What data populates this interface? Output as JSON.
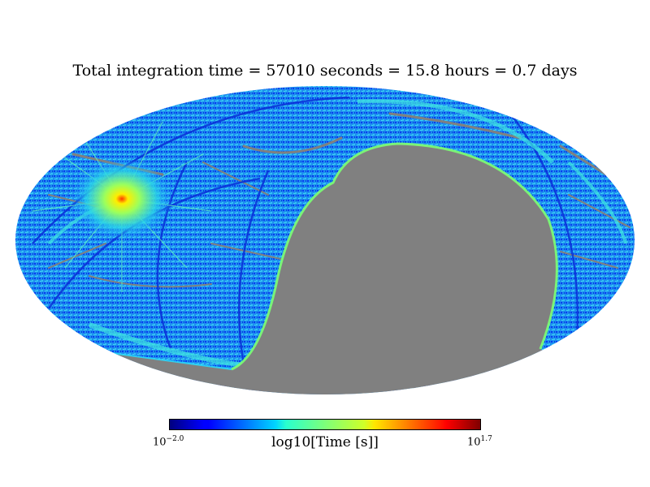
{
  "chart_data": {
    "type": "heatmap",
    "projection": "mollweide",
    "title": "Total integration time = 57010 seconds = 15.8 hours = 0.7 days",
    "colorbar": {
      "label": "log10[Time [s]]",
      "min_base": "10",
      "min_exp": "−2.0",
      "max_base": "10",
      "max_exp": "1.7",
      "vmin_log10": -2.0,
      "vmax_log10": 1.7,
      "colormap": "jet"
    },
    "unobserved_color": "#808080",
    "total_seconds": 57010,
    "total_hours": 15.8,
    "total_days": 0.7
  }
}
